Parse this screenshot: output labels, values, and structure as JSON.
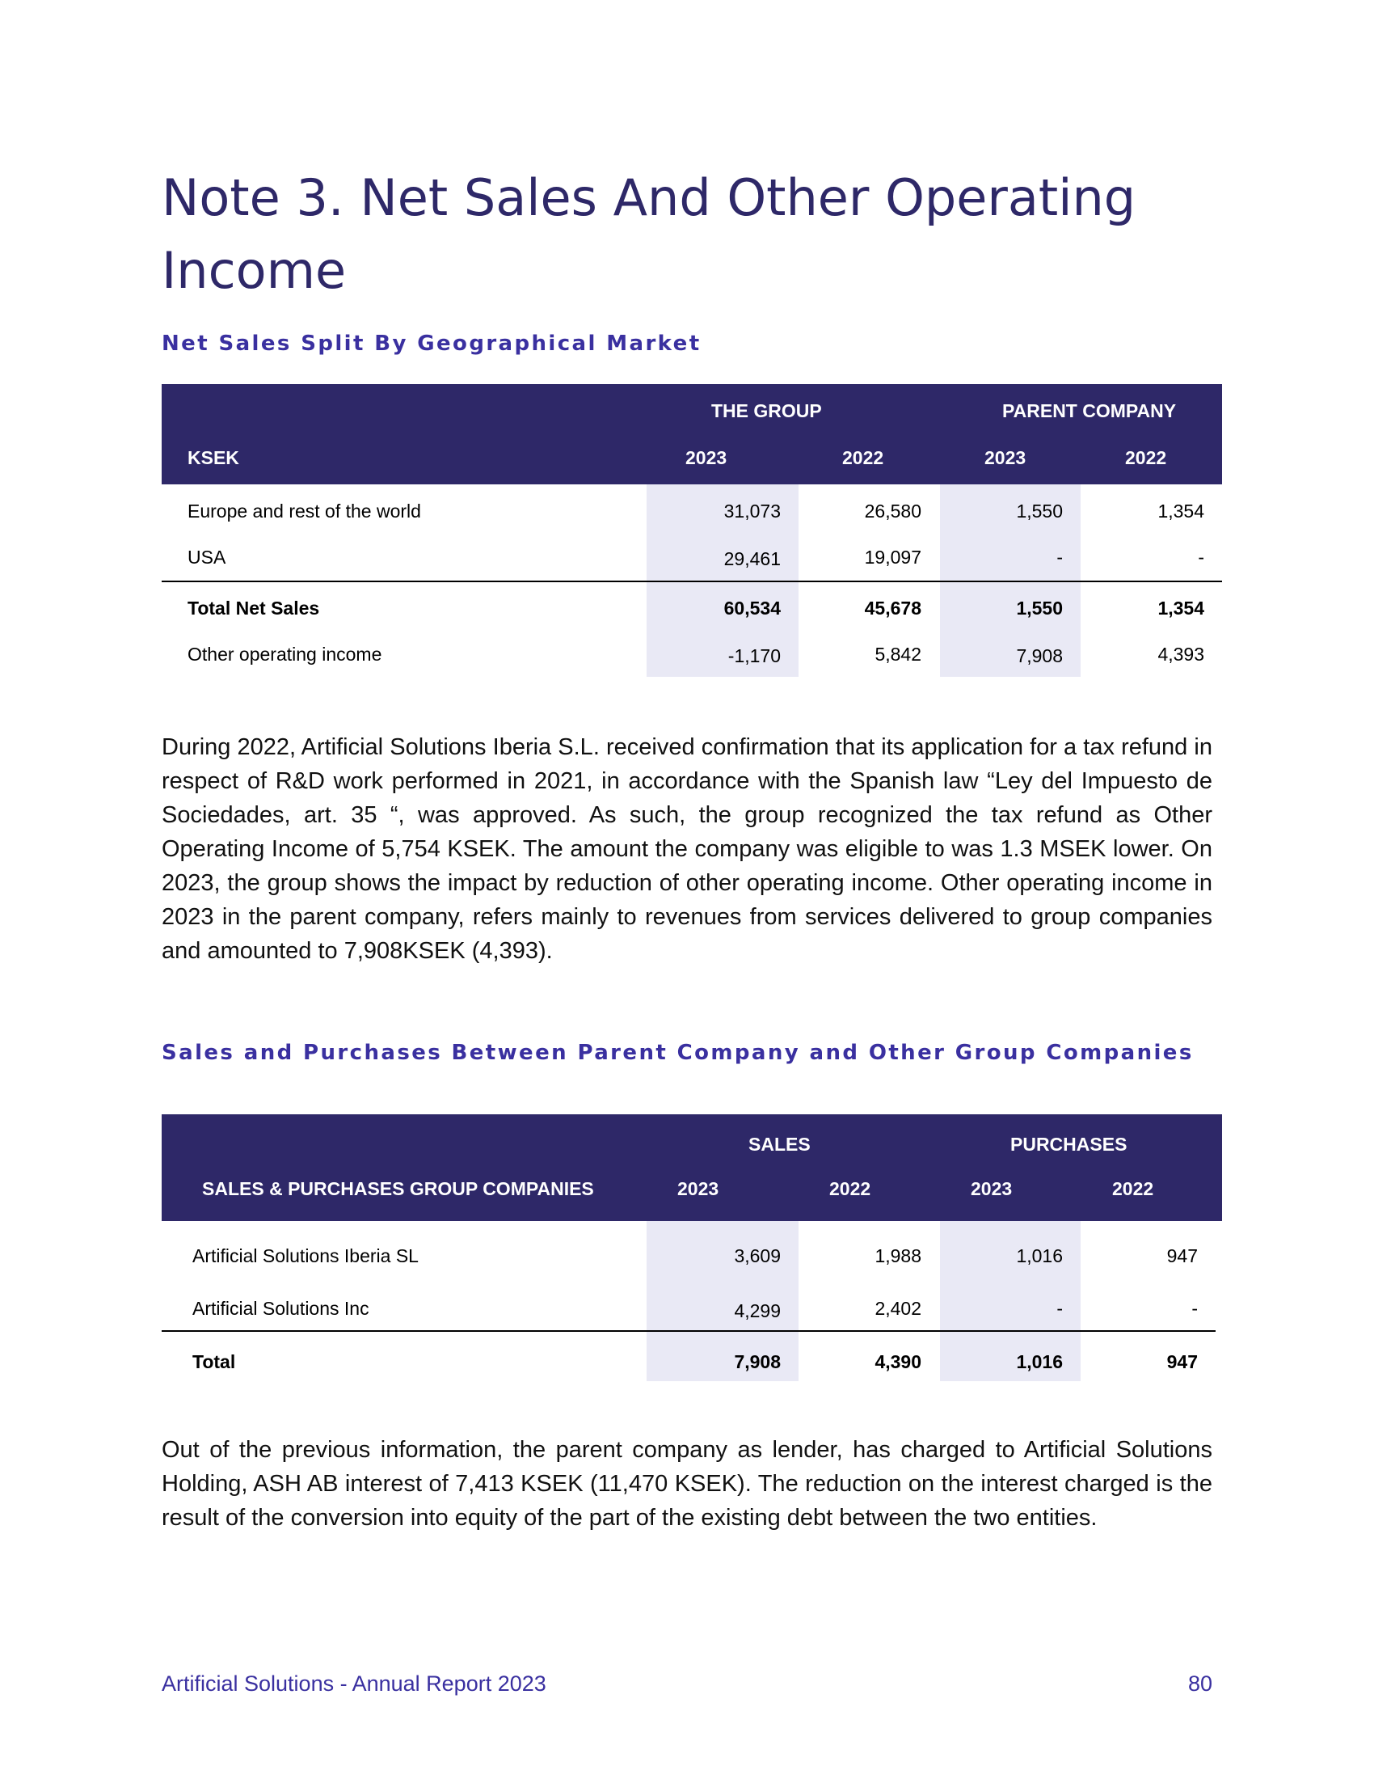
{
  "page": {
    "title": "Note 3. Net Sales And Other Operating Income",
    "footer_left": "Artificial Solutions - Annual Report 2023",
    "page_number": "80"
  },
  "colors": {
    "header_bg": "#2e2868",
    "accent_text": "#3a30a0",
    "column_shade": "#e9e9f5"
  },
  "section1": {
    "heading": "Net Sales Split By Geographical Market",
    "table": {
      "group_headers": [
        "THE GROUP",
        "PARENT  COMPANY"
      ],
      "row_header": "KSEK",
      "years": [
        "2023",
        "2022",
        "2023",
        "2022"
      ],
      "rows": [
        {
          "label": "Europe and rest of the world",
          "values": [
            "31,073",
            "26,580",
            "1,550",
            "1,354"
          ]
        },
        {
          "label": "USA",
          "values": [
            "29,461",
            "19,097",
            "-",
            "-"
          ]
        },
        {
          "label": "Total Net Sales",
          "values": [
            "60,534",
            "45,678",
            "1,550",
            "1,354"
          ]
        },
        {
          "label": "Other operating income",
          "values": [
            "-1,170",
            "5,842",
            "7,908",
            "4,393"
          ]
        }
      ]
    },
    "paragraph": "During 2022, Artificial Solutions Iberia S.L. received confirmation that its application for a tax refund in respect of R&D work performed in 2021, in accordance with the Spanish law “Ley del Impuesto de Sociedades, art. 35 “, was approved. As such, the group recognized the tax refund as Other Operating Income of 5,754 KSEK. The amount the company was eligible to was 1.3 MSEK lower. On 2023, the group shows the impact by reduction of other operating income. Other operating income in 2023 in the parent company, refers mainly to revenues from services delivered to group companies and amounted to 7,908KSEK (4,393)."
  },
  "section2": {
    "heading": "Sales and Purchases Between Parent Company and Other Group Companies",
    "table": {
      "group_headers": [
        "SALES",
        "PURCHASES"
      ],
      "row_header": "SALES & PURCHASES GROUP COMPANIES",
      "years": [
        "2023",
        "2022",
        "2023",
        "2022"
      ],
      "rows": [
        {
          "label": "Artificial Solutions Iberia SL",
          "values": [
            "3,609",
            "1,988",
            "1,016",
            "947"
          ]
        },
        {
          "label": "Artificial Solutions Inc",
          "values": [
            "4,299",
            "2,402",
            "-",
            "-"
          ]
        },
        {
          "label": "Total",
          "values": [
            "7,908",
            "4,390",
            "1,016",
            "947"
          ]
        }
      ]
    },
    "paragraph": "Out of the previous information, the parent company as lender, has charged to Artificial Solutions Holding, ASH AB interest of 7,413 KSEK (11,470 KSEK). The reduction on the interest charged is the result of the conversion into equity of the part of the existing debt between the two entities."
  }
}
